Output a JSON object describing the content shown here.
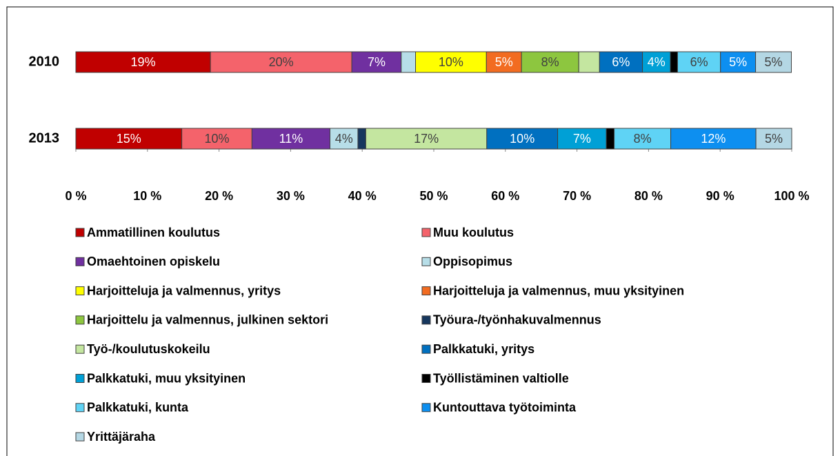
{
  "chart_data": {
    "type": "stacked-bar-horizontal",
    "categories": [
      "2010",
      "2013"
    ],
    "xlim": [
      0,
      100
    ],
    "xticks": [
      {
        "value": 0,
        "label": "0 %"
      },
      {
        "value": 10,
        "label": "10 %"
      },
      {
        "value": 20,
        "label": "20 %"
      },
      {
        "value": 30,
        "label": "30 %"
      },
      {
        "value": 40,
        "label": "40 %"
      },
      {
        "value": 50,
        "label": "50 %"
      },
      {
        "value": 60,
        "label": "60 %"
      },
      {
        "value": 70,
        "label": "70 %"
      },
      {
        "value": 80,
        "label": "80 %"
      },
      {
        "value": 90,
        "label": "90 %"
      },
      {
        "value": 100,
        "label": "100 %"
      }
    ],
    "legend": "bottom",
    "series": [
      {
        "name": "Ammatillinen koulutus",
        "color": "#c00000",
        "values": [
          18.8,
          14.8
        ],
        "value_labels": [
          "19%",
          "15%"
        ]
      },
      {
        "name": "Muu koulutus",
        "color": "#f4636b",
        "values": [
          19.75,
          9.8
        ],
        "value_labels": [
          "20%",
          "10%"
        ]
      },
      {
        "name": "Omaehtoinen opiskelu",
        "color": "#7030a0",
        "values": [
          6.9,
          10.9
        ],
        "value_labels": [
          "7%",
          "11%"
        ]
      },
      {
        "name": "Oppisopimus",
        "color": "#b7dee8",
        "values": [
          2.0,
          3.9
        ],
        "value_labels": [
          null,
          "4%"
        ]
      },
      {
        "name": "Harjoitteluja ja valmennus, yritys",
        "color": "#ffff00",
        "values": [
          9.9,
          0
        ],
        "value_labels": [
          "10%",
          null
        ]
      },
      {
        "name": "Harjoitteluja ja valmennus, muu yksityinen",
        "color": "#f26c21",
        "values": [
          4.9,
          0
        ],
        "value_labels": [
          "5%",
          null
        ]
      },
      {
        "name": "Harjoittelu ja valmennus, julkinen sektori",
        "color": "#8dc63f",
        "values": [
          8.0,
          0
        ],
        "value_labels": [
          "8%",
          null
        ]
      },
      {
        "name": "Työura-/työnhakuvalmennus",
        "color": "#17375e",
        "values": [
          0,
          1.1
        ],
        "value_labels": [
          null,
          null
        ]
      },
      {
        "name": "Työ-/koulutuskokeilu",
        "color": "#c4e6a0",
        "values": [
          2.9,
          16.9
        ],
        "value_labels": [
          null,
          "17%"
        ]
      },
      {
        "name": "Palkkatuki, yritys",
        "color": "#0070c0",
        "values": [
          6.0,
          9.9
        ],
        "value_labels": [
          "6%",
          "10%"
        ]
      },
      {
        "name": "Palkkatuki, muu yksityinen",
        "color": "#00a0d6",
        "values": [
          3.9,
          6.8
        ],
        "value_labels": [
          "4%",
          "7%"
        ]
      },
      {
        "name": "Työllistäminen valtiolle",
        "color": "#000000",
        "values": [
          1.0,
          1.1
        ],
        "value_labels": [
          null,
          null
        ]
      },
      {
        "name": "Palkkatuki, kunta",
        "color": "#5fd3f5",
        "values": [
          6.0,
          7.9
        ],
        "value_labels": [
          "6%",
          "8%"
        ]
      },
      {
        "name": "Kuntouttava työtoiminta",
        "color": "#0d8ff0",
        "values": [
          4.9,
          11.9
        ],
        "value_labels": [
          "5%",
          "12%"
        ]
      },
      {
        "name": "Yrittäjäraha",
        "color": "#b4d7e4",
        "values": [
          5.0,
          5.0
        ],
        "value_labels": [
          "5%",
          "5%"
        ]
      }
    ]
  }
}
